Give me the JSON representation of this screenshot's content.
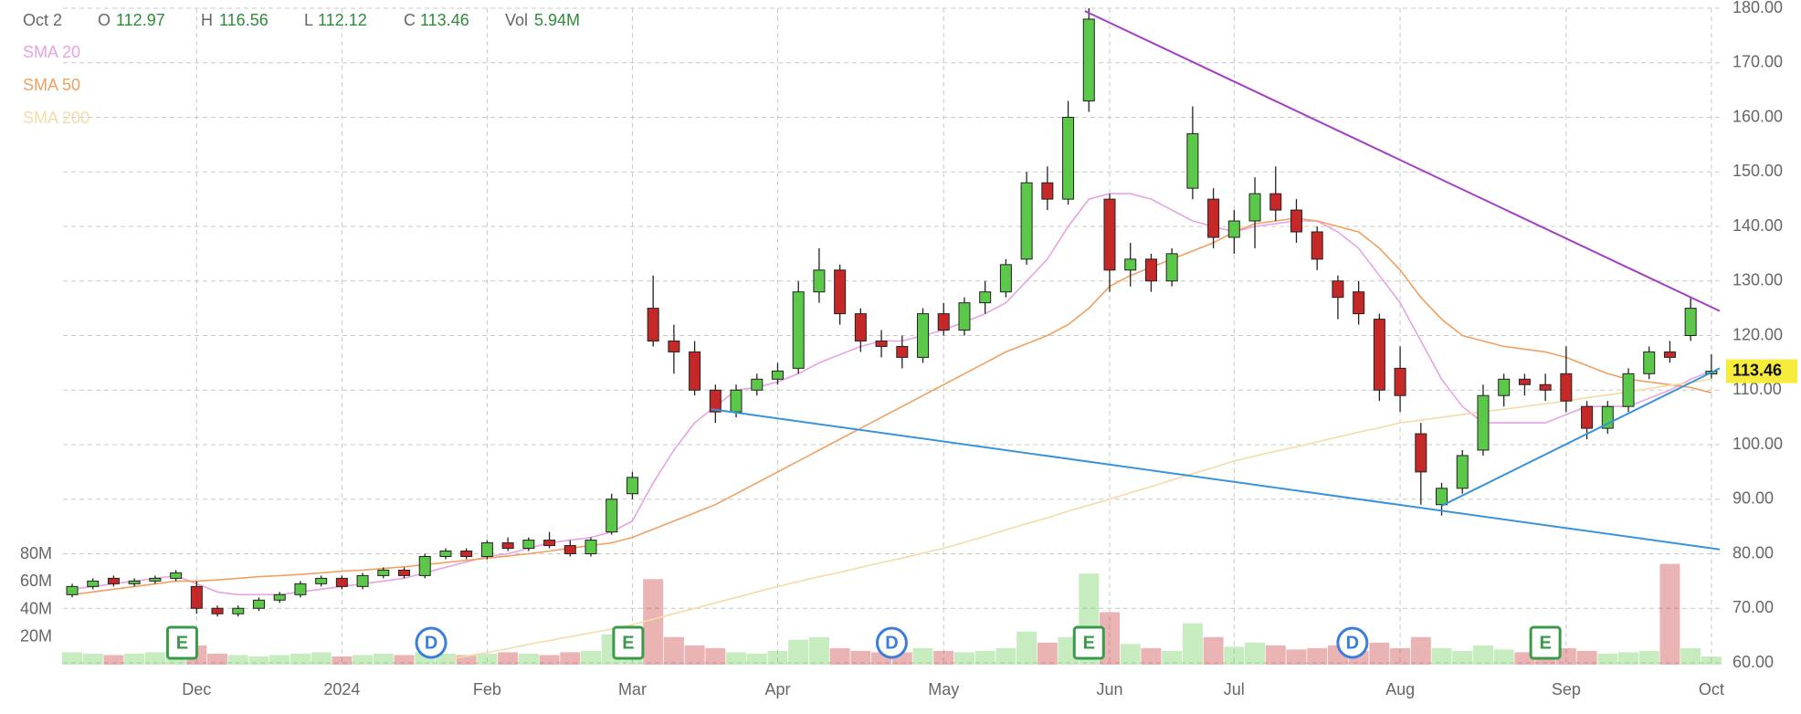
{
  "chart_data": {
    "type": "candlestick",
    "header": {
      "date": "Oct 2",
      "o": "O",
      "h": "H",
      "l": "L",
      "c": "C",
      "vol": "Vol",
      "vol_value": "5.94M"
    },
    "categories": [
      null,
      null,
      null,
      null,
      null,
      null,
      "Dec",
      null,
      null,
      null,
      null,
      null,
      null,
      "2024",
      null,
      null,
      null,
      null,
      null,
      null,
      "Feb",
      null,
      null,
      null,
      null,
      null,
      null,
      "Mar",
      null,
      null,
      null,
      null,
      null,
      null,
      "Apr",
      null,
      null,
      null,
      null,
      null,
      null,
      null,
      "May",
      null,
      null,
      null,
      null,
      null,
      null,
      null,
      "Jun",
      null,
      null,
      null,
      null,
      null,
      "Jul",
      null,
      null,
      null,
      null,
      null,
      null,
      null,
      "Aug",
      null,
      null,
      null,
      null,
      null,
      null,
      null,
      "Sep",
      null,
      null,
      null,
      null,
      null,
      null,
      "Oct"
    ],
    "candles": {
      "up_color": "#5cc84a",
      "down_color": "#c62828",
      "open": [
        72.5,
        74,
        75.5,
        74.5,
        75,
        75.5,
        74,
        70,
        69,
        70,
        71.5,
        72.5,
        74.5,
        75.5,
        74,
        76,
        77,
        76,
        79.5,
        80.5,
        79.5,
        82,
        81,
        82.5,
        81.5,
        80,
        84,
        91,
        125,
        119,
        117,
        110,
        106,
        110,
        112,
        114,
        128,
        132,
        124,
        119,
        118,
        116,
        124,
        121,
        126,
        128,
        134,
        148,
        145,
        163,
        145,
        132,
        134,
        130,
        147,
        145,
        138,
        141,
        146,
        143,
        139,
        130,
        128,
        123,
        114,
        102,
        89,
        92,
        99,
        109,
        112,
        111,
        113,
        107,
        103,
        107,
        113,
        117,
        120,
        112.97
      ],
      "high": [
        74.5,
        75.5,
        76,
        75.5,
        76,
        77,
        75,
        70.5,
        70.5,
        72,
        73,
        75,
        76,
        76,
        76.5,
        77.5,
        77.5,
        80,
        81,
        81,
        82.5,
        83,
        83,
        84,
        82.5,
        83,
        91,
        95,
        131,
        122,
        119,
        111,
        111,
        113,
        115,
        130,
        136,
        133,
        125,
        121,
        120,
        125,
        126,
        127,
        130,
        134,
        150,
        151,
        163,
        180,
        146,
        137,
        135,
        136,
        162,
        147,
        143,
        149,
        151,
        145,
        140,
        131,
        130,
        124,
        118,
        104,
        93,
        99,
        111,
        113,
        113,
        113,
        118,
        108,
        108,
        114,
        118,
        119,
        127,
        116.56
      ],
      "low": [
        72,
        73.5,
        74,
        74,
        74.5,
        75,
        69,
        68.5,
        68.5,
        69.5,
        71,
        72,
        74,
        73.5,
        73.5,
        75.5,
        75.5,
        75.5,
        79,
        79,
        79,
        80.5,
        80.5,
        81,
        79.5,
        79.5,
        83.5,
        90,
        118,
        113,
        109,
        104,
        105,
        109,
        111,
        113,
        126,
        122,
        117,
        116,
        114,
        115,
        120,
        120,
        124,
        127,
        133,
        143,
        144,
        161,
        128,
        129,
        128,
        129,
        145,
        136,
        135,
        136,
        141,
        137,
        132,
        123,
        122,
        108,
        106,
        89,
        87,
        91,
        98,
        107,
        109,
        108,
        106,
        101,
        102,
        106,
        112,
        115,
        119,
        112.12
      ],
      "close": [
        74,
        75,
        74.5,
        75,
        75.5,
        76.5,
        70,
        69,
        70,
        71.5,
        72.5,
        74.5,
        75.5,
        74,
        76,
        77,
        76,
        79.5,
        80.5,
        79.5,
        82,
        81,
        82.5,
        81.5,
        80,
        82.5,
        90,
        94,
        119,
        117,
        110,
        106,
        110,
        112,
        113.5,
        128,
        132,
        124,
        119,
        118,
        116,
        124,
        121,
        126,
        128,
        133,
        148,
        145,
        160,
        178,
        132,
        134,
        130,
        135,
        157,
        138,
        141,
        146,
        143,
        139,
        134,
        127,
        124,
        110,
        109,
        95,
        92,
        98,
        109,
        112,
        111,
        110,
        108,
        103,
        107,
        113,
        117,
        116,
        125,
        113.46
      ]
    },
    "volume": {
      "values": [
        9000000,
        8000000,
        7000000,
        8000000,
        9000000,
        10000000,
        14000000,
        8000000,
        7000000,
        6000000,
        7000000,
        8000000,
        9000000,
        6000000,
        7000000,
        8000000,
        7000000,
        9000000,
        8000000,
        7000000,
        8000000,
        9000000,
        8000000,
        7000000,
        9000000,
        10000000,
        22000000,
        12000000,
        62000000,
        20000000,
        14000000,
        12000000,
        9000000,
        8000000,
        10000000,
        18000000,
        20000000,
        12000000,
        10000000,
        9000000,
        9000000,
        12000000,
        10000000,
        9000000,
        10000000,
        12000000,
        24000000,
        16000000,
        20000000,
        66000000,
        38000000,
        15000000,
        12000000,
        10000000,
        30000000,
        20000000,
        13000000,
        16000000,
        14000000,
        11000000,
        12000000,
        14000000,
        10000000,
        16000000,
        12000000,
        20000000,
        12000000,
        10000000,
        14000000,
        11000000,
        9000000,
        10000000,
        12000000,
        10000000,
        8000000,
        9000000,
        10000000,
        73000000,
        12000000,
        5940000
      ],
      "ylim": [
        0,
        80000000
      ],
      "yticks": [
        {
          "value": 20000000,
          "label": "20M"
        },
        {
          "value": 40000000,
          "label": "40M"
        },
        {
          "value": 60000000,
          "label": "60M"
        },
        {
          "value": 80000000,
          "label": "80M"
        }
      ]
    },
    "sma": [
      {
        "name": "SMA 20",
        "color": "#e8a3e3",
        "values": [
          73.5,
          74,
          74.5,
          75,
          75.5,
          76,
          74.5,
          73,
          72.5,
          72.5,
          72.5,
          73,
          73.5,
          74,
          74.5,
          75,
          75.5,
          76.5,
          77.5,
          78.5,
          79.5,
          80,
          81,
          82,
          82.5,
          83,
          84,
          86,
          93,
          99,
          104,
          107,
          110,
          110.5,
          111.5,
          113,
          115,
          116.5,
          118,
          119,
          119,
          120,
          121,
          122.5,
          124,
          126,
          130,
          134,
          140,
          145,
          146,
          146,
          145,
          143,
          141,
          140,
          139,
          140,
          140.5,
          141,
          141,
          139,
          136,
          131,
          126,
          119,
          112,
          107,
          104,
          104,
          104,
          104,
          105.5,
          107,
          107,
          107,
          108.5,
          110,
          112,
          113.5
        ]
      },
      {
        "name": "SMA 50",
        "color": "#f0a060",
        "values": [
          72.5,
          73,
          73.5,
          74,
          74.5,
          75,
          75,
          75.2,
          75.5,
          75.8,
          76,
          76.2,
          76.5,
          76.8,
          77,
          77.3,
          77.6,
          78,
          78.4,
          78.8,
          79.2,
          79.6,
          80,
          80.5,
          81,
          81.5,
          82,
          83,
          84.5,
          86,
          87.5,
          89,
          91,
          93,
          95,
          97,
          99,
          101,
          103,
          105,
          107,
          109,
          111,
          113,
          115,
          117,
          118.5,
          120,
          122,
          125,
          129,
          131,
          132.5,
          134,
          135.5,
          137,
          139,
          140.5,
          141,
          141.5,
          141,
          140,
          139,
          136,
          132,
          127,
          123,
          120,
          119,
          118,
          117.5,
          117,
          116,
          114.5,
          113,
          112,
          111.5,
          111,
          110.5,
          109.5
        ]
      },
      {
        "name": "SMA 200",
        "color": "#f3dca8",
        "values": [
          null,
          null,
          null,
          null,
          null,
          null,
          null,
          null,
          null,
          null,
          null,
          null,
          null,
          null,
          null,
          null,
          null,
          null,
          60.5,
          61.2,
          61.9,
          62.6,
          63.4,
          64.1,
          64.8,
          65.5,
          66.2,
          67,
          68,
          69,
          70,
          71,
          72,
          73,
          74,
          74.9,
          75.8,
          76.6,
          77.5,
          78.4,
          79.2,
          80.1,
          81,
          82.1,
          83.2,
          84.4,
          85.5,
          86.6,
          87.8,
          88.9,
          90,
          91.2,
          92.3,
          93.5,
          94.7,
          95.8,
          97,
          97.9,
          98.8,
          99.6,
          100.5,
          101.4,
          102.3,
          103.1,
          104,
          104.5,
          105,
          105.5,
          106,
          106.5,
          107,
          107.5,
          108,
          108.6,
          109.1,
          109.7,
          110.3,
          110.9,
          111.4,
          112
        ]
      }
    ],
    "trendlines": [
      {
        "color": "#a23ec4",
        "start": [
          48.8,
          179.5
        ],
        "end": [
          79.4,
          124.5
        ]
      },
      {
        "color": "#3a92d8",
        "start": [
          30.8,
          106.5
        ],
        "end": [
          79.4,
          80.8
        ]
      },
      {
        "color": "#3a92d8",
        "start": [
          66,
          88.8
        ],
        "end": [
          79.4,
          114
        ]
      }
    ],
    "events": [
      {
        "label": "E",
        "x": 5.3,
        "color": "#3a9a4a"
      },
      {
        "label": "D",
        "x": 17.3,
        "color": "#3b7ddd"
      },
      {
        "label": "E",
        "x": 26.8,
        "color": "#3a9a4a"
      },
      {
        "label": "D",
        "x": 39.5,
        "color": "#3b7ddd"
      },
      {
        "label": "E",
        "x": 49,
        "color": "#3a9a4a"
      },
      {
        "label": "D",
        "x": 61.7,
        "color": "#3b7ddd"
      },
      {
        "label": "E",
        "x": 71,
        "color": "#3a9a4a"
      }
    ],
    "ylim": [
      60,
      180
    ],
    "yticks": [
      {
        "value": 60,
        "label": "60.00"
      },
      {
        "value": 70,
        "label": "70.00"
      },
      {
        "value": 80,
        "label": "80.00"
      },
      {
        "value": 90,
        "label": "90.00"
      },
      {
        "value": 100,
        "label": "100.00"
      },
      {
        "value": 110,
        "label": "110.00"
      },
      {
        "value": 120,
        "label": "120.00"
      },
      {
        "value": 130,
        "label": "130.00"
      },
      {
        "value": 140,
        "label": "140.00"
      },
      {
        "value": 150,
        "label": "150.00"
      },
      {
        "value": 160,
        "label": "160.00"
      },
      {
        "value": 170,
        "label": "170.00"
      },
      {
        "value": 180,
        "label": "180.00"
      }
    ],
    "last_price_color": "#f7ec3c",
    "grid": true
  }
}
